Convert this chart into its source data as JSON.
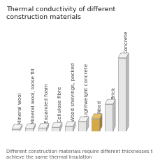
{
  "title": "Thermal conductivity of different\nconstruction materials",
  "footnote": "Different construction materials require different thicknesses to\nachieve the same thermal insulation",
  "categories": [
    "Mineral wool",
    "Mineral wool, loose fill",
    "Expanded foam",
    "Cellulose fibre",
    "Wood shavings, packed",
    "Lightweight concrete",
    "Wood",
    "Brick",
    "Concrete"
  ],
  "values": [
    1,
    1.3,
    1.6,
    2.0,
    2.5,
    5.0,
    6.5,
    14.0,
    38.0
  ],
  "bar_face_colors": [
    "#e6e6e6",
    "#e6e6e6",
    "#e6e6e6",
    "#e6e6e6",
    "#e6e6e6",
    "#e6e6e6",
    "#d4a843",
    "#e6e6e6",
    "#e6e6e6"
  ],
  "bar_top_colors": [
    "#f2f2f2",
    "#f2f2f2",
    "#f2f2f2",
    "#f2f2f2",
    "#f2f2f2",
    "#f2f2f2",
    "#e8c060",
    "#f2f2f2",
    "#f2f2f2"
  ],
  "bar_side_colors": [
    "#b8b8b8",
    "#b8b8b8",
    "#b8b8b8",
    "#b8b8b8",
    "#b8b8b8",
    "#b8b8b8",
    "#a07828",
    "#b8b8b8",
    "#b8b8b8"
  ],
  "edge_color": "#999999",
  "background_color": "#ffffff",
  "title_fontsize": 6.8,
  "footnote_fontsize": 4.8,
  "label_fontsize": 5.2,
  "title_color": "#222222",
  "label_color": "#444444",
  "footnote_color": "#555555"
}
